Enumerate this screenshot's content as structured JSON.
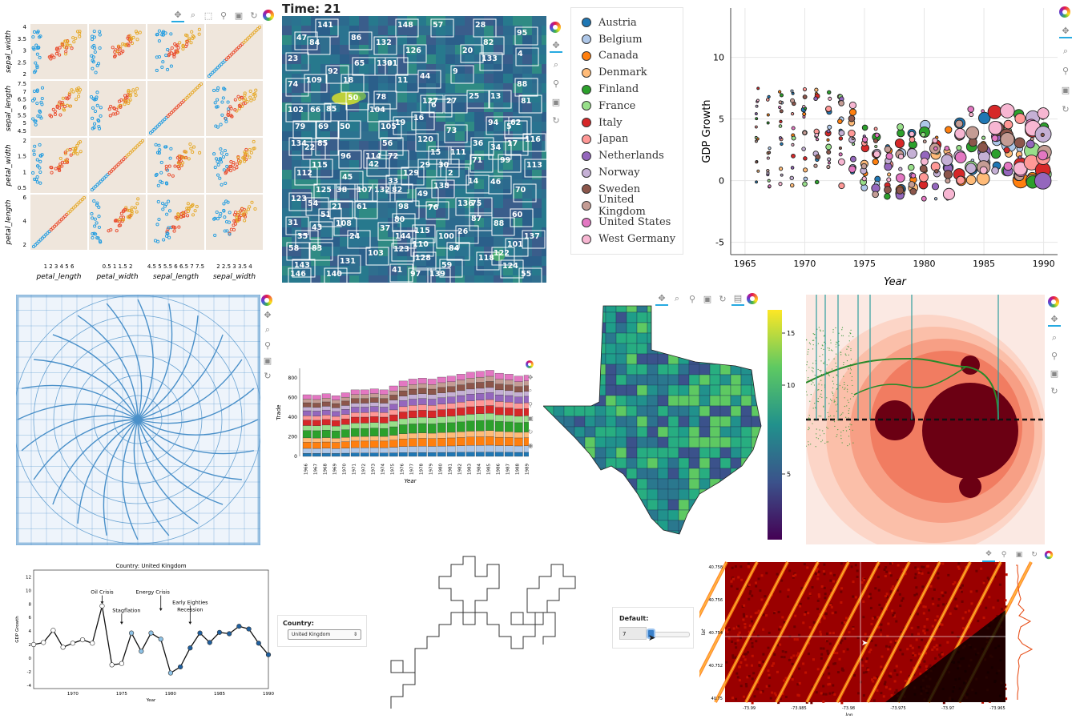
{
  "splom": {
    "ylabels": [
      "sepal_width",
      "sepal_length",
      "petal_width",
      "petal_length"
    ],
    "xlabels": [
      "petal_length",
      "petal_width",
      "sepal_length",
      "sepal_width"
    ],
    "xticks": [
      "1 2 3 4 5 6",
      "0.5 1 1.5 2",
      "4.5 5 5.5 6 6.5 7 7.5",
      "2 2.5 3 3.5 4"
    ],
    "yticks": [
      [
        "4",
        "3.5",
        "3",
        "2.5",
        "2"
      ],
      [
        "7.5",
        "7",
        "6.5",
        "6",
        "5.5",
        "5",
        "4.5"
      ],
      [
        "2",
        "1.5",
        "1",
        "0.5"
      ],
      [
        "6",
        "4",
        "2"
      ]
    ]
  },
  "heat": {
    "title": "Time: 21",
    "labels": [
      [
        "141",
        396,
        33
      ],
      [
        "148",
        496,
        33
      ],
      [
        "57",
        540,
        33
      ],
      [
        "28",
        593,
        33
      ],
      [
        "47",
        370,
        49
      ],
      [
        "84",
        386,
        55
      ],
      [
        "86",
        438,
        49
      ],
      [
        "132",
        469,
        55
      ],
      [
        "95",
        645,
        43
      ],
      [
        "126",
        506,
        65
      ],
      [
        "82",
        603,
        55
      ],
      [
        "20",
        577,
        65
      ],
      [
        "4",
        646,
        69
      ],
      [
        "65",
        442,
        81
      ],
      [
        "130",
        470,
        81
      ],
      [
        "91",
        483,
        81
      ],
      [
        "133",
        601,
        75
      ],
      [
        "23",
        359,
        75
      ],
      [
        "92",
        409,
        91
      ],
      [
        "9",
        565,
        91
      ],
      [
        "18",
        428,
        102
      ],
      [
        "11",
        496,
        102
      ],
      [
        "44",
        524,
        97
      ],
      [
        "88",
        645,
        107
      ],
      [
        "74",
        359,
        107
      ],
      [
        "109",
        382,
        102
      ],
      [
        "50",
        434,
        124
      ],
      [
        "78",
        469,
        123
      ],
      [
        "127",
        527,
        128
      ],
      [
        "6",
        538,
        133
      ],
      [
        "27",
        557,
        128
      ],
      [
        "25",
        585,
        122
      ],
      [
        "13",
        612,
        122
      ],
      [
        "81",
        650,
        128
      ],
      [
        "102",
        359,
        139
      ],
      [
        "66",
        387,
        139
      ],
      [
        "85",
        407,
        138
      ],
      [
        "104",
        461,
        139
      ],
      [
        "16",
        516,
        149
      ],
      [
        "94",
        609,
        155
      ],
      [
        "5",
        632,
        160
      ],
      [
        "62",
        637,
        155
      ],
      [
        "79",
        368,
        160
      ],
      [
        "69",
        397,
        160
      ],
      [
        "50",
        424,
        160
      ],
      [
        "105",
        475,
        160
      ],
      [
        "19",
        493,
        155
      ],
      [
        "73",
        557,
        165
      ],
      [
        "134",
        363,
        181
      ],
      [
        "22",
        380,
        186
      ],
      [
        "85",
        396,
        181
      ],
      [
        "56",
        477,
        181
      ],
      [
        "120",
        521,
        176
      ],
      [
        "17",
        633,
        181
      ],
      [
        "116",
        655,
        176
      ],
      [
        "96",
        425,
        197
      ],
      [
        "114",
        456,
        197
      ],
      [
        "72",
        484,
        197
      ],
      [
        "15",
        537,
        192
      ],
      [
        "111",
        562,
        192
      ],
      [
        "36",
        590,
        181
      ],
      [
        "34",
        612,
        186
      ],
      [
        "71",
        589,
        202
      ],
      [
        "99",
        624,
        202
      ],
      [
        "112",
        370,
        218
      ],
      [
        "115",
        389,
        208
      ],
      [
        "42",
        460,
        207
      ],
      [
        "129",
        503,
        218
      ],
      [
        "29",
        524,
        208
      ],
      [
        "30",
        547,
        208
      ],
      [
        "2",
        559,
        218
      ],
      [
        "113",
        657,
        208
      ],
      [
        "45",
        427,
        223
      ],
      [
        "33",
        484,
        228
      ],
      [
        "138",
        541,
        234
      ],
      [
        "14",
        584,
        228
      ],
      [
        "46",
        612,
        229
      ],
      [
        "125",
        394,
        239
      ],
      [
        "38",
        420,
        239
      ],
      [
        "107",
        445,
        239
      ],
      [
        "132",
        467,
        239
      ],
      [
        "82",
        489,
        239
      ],
      [
        "49",
        521,
        244
      ],
      [
        "70",
        643,
        239
      ],
      [
        "123",
        363,
        250
      ],
      [
        "54",
        384,
        256
      ],
      [
        "21",
        414,
        260
      ],
      [
        "61",
        445,
        260
      ],
      [
        "98",
        497,
        260
      ],
      [
        "76",
        534,
        261
      ],
      [
        "136",
        571,
        256
      ],
      [
        "75",
        588,
        256
      ],
      [
        "51",
        400,
        270
      ],
      [
        "31",
        359,
        280
      ],
      [
        "80",
        492,
        276
      ],
      [
        "87",
        588,
        275
      ],
      [
        "88",
        616,
        281
      ],
      [
        "60",
        639,
        270
      ],
      [
        "43",
        389,
        286
      ],
      [
        "37",
        474,
        287
      ],
      [
        "108",
        419,
        281
      ],
      [
        "24",
        436,
        297
      ],
      [
        "144",
        493,
        297
      ],
      [
        "115",
        517,
        290
      ],
      [
        "100",
        547,
        297
      ],
      [
        "26",
        571,
        291
      ],
      [
        "35",
        371,
        297
      ],
      [
        "137",
        654,
        297
      ],
      [
        "110",
        515,
        307
      ],
      [
        "101",
        633,
        307
      ],
      [
        "58",
        360,
        312
      ],
      [
        "83",
        389,
        312
      ],
      [
        "103",
        459,
        318
      ],
      [
        "123",
        491,
        313
      ],
      [
        "128",
        518,
        324
      ],
      [
        "84",
        560,
        312
      ],
      [
        "122",
        616,
        318
      ],
      [
        "118",
        597,
        324
      ],
      [
        "131",
        424,
        328
      ],
      [
        "143",
        367,
        333
      ],
      [
        "146",
        362,
        344
      ],
      [
        "140",
        407,
        344
      ],
      [
        "124",
        627,
        334
      ],
      [
        "41",
        489,
        339
      ],
      [
        "97",
        512,
        344
      ],
      [
        "139",
        536,
        344
      ],
      [
        "59",
        551,
        333
      ],
      [
        "55",
        650,
        344
      ]
    ]
  },
  "legend": {
    "items": [
      {
        "name": "Austria",
        "color": "#1f77b4"
      },
      {
        "name": "Belgium",
        "color": "#aec7e8"
      },
      {
        "name": "Canada",
        "color": "#ff7f0e"
      },
      {
        "name": "Denmark",
        "color": "#ffbb78"
      },
      {
        "name": "Finland",
        "color": "#2ca02c"
      },
      {
        "name": "France",
        "color": "#98df8a"
      },
      {
        "name": "Italy",
        "color": "#d62728"
      },
      {
        "name": "Japan",
        "color": "#ff9896"
      },
      {
        "name": "Netherlands",
        "color": "#9467bd"
      },
      {
        "name": "Norway",
        "color": "#c5b0d5"
      },
      {
        "name": "Sweden",
        "color": "#8c564b"
      },
      {
        "name": "United Kingdom",
        "color": "#c49c94"
      },
      {
        "name": "United States",
        "color": "#e377c2"
      },
      {
        "name": "West Germany",
        "color": "#f7b6d2"
      }
    ]
  },
  "gdp_scatter": {
    "ylabel": "GDP Growth",
    "xlabel": "Year",
    "xticks": [
      "1965",
      "1970",
      "1975",
      "1980",
      "1985",
      "1990"
    ],
    "yticks": [
      "10",
      "5",
      "0",
      "-5"
    ]
  },
  "stacked": {
    "ylabel": "Trade",
    "xlabel": "Year",
    "yticks": [
      "800",
      "600",
      "400",
      "200",
      "0"
    ],
    "colors": [
      "#1f77b4",
      "#aec7e8",
      "#ff7f0e",
      "#ffbb78",
      "#2ca02c",
      "#98df8a",
      "#d62728",
      "#ff9896",
      "#9467bd",
      "#c5b0d5",
      "#8c564b",
      "#c49c94",
      "#e377c2"
    ]
  },
  "colorbar": {
    "ticks": [
      "15",
      "10",
      "5"
    ]
  },
  "chart_data": {
    "type": "line",
    "title": "Country: United Kingdom",
    "xlabel": "Year",
    "ylabel": "GDP Growth",
    "x": [
      1966,
      1967,
      1968,
      1969,
      1970,
      1971,
      1972,
      1973,
      1974,
      1975,
      1976,
      1977,
      1978,
      1979,
      1980,
      1981,
      1982,
      1983,
      1984,
      1985,
      1986,
      1987,
      1988,
      1989,
      1990
    ],
    "y": [
      2.0,
      2.3,
      4.1,
      1.6,
      2.2,
      2.7,
      2.2,
      7.7,
      -1.0,
      -0.8,
      3.7,
      1.0,
      3.7,
      2.8,
      -2.2,
      -1.3,
      1.5,
      3.7,
      2.3,
      3.8,
      3.6,
      4.7,
      4.3,
      2.2,
      0.5
    ],
    "xticks": [
      "1970",
      "1975",
      "1980",
      "1985",
      "1990"
    ],
    "yticks": [
      "12",
      "10",
      "8",
      "6",
      "4",
      "2",
      "0",
      "-2",
      "-4"
    ],
    "ylim": [
      -4.5,
      13
    ],
    "annotations": [
      {
        "text": "Oil Crisis",
        "x": 1973
      },
      {
        "text": "Stagflation",
        "x": 1975
      },
      {
        "text": "Energy Crisis",
        "x": 1979
      },
      {
        "text": "Early Eighties",
        "x": 1982
      },
      {
        "text": "Recession",
        "x": 1982
      }
    ]
  },
  "country_widget": {
    "label": "Country:",
    "value": "United Kingdom"
  },
  "slider_widget": {
    "label": "Default:",
    "value": "7"
  },
  "taxi": {
    "ylabel": "lat",
    "xlabel": "lon",
    "yticks": [
      "40.758",
      "40.756",
      "40.754",
      "40.752",
      "40.75"
    ],
    "xticks": [
      "-73.99",
      "-73.985",
      "-73.98",
      "-73.975",
      "-73.97",
      "-73.965"
    ]
  }
}
